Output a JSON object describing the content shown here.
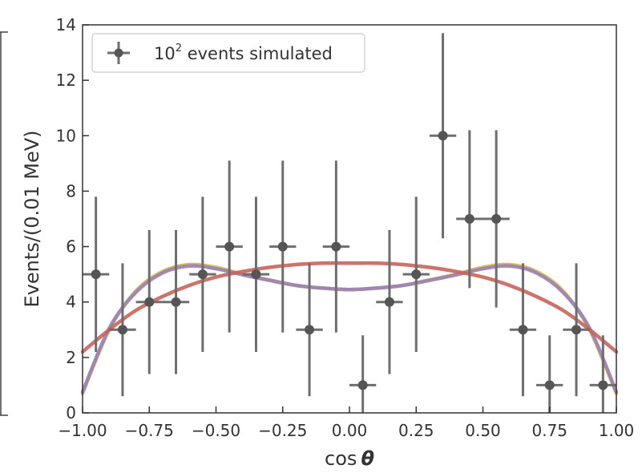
{
  "chart_data": {
    "type": "scatter",
    "xlabel": "cos",
    "xlabel_symbol": "θ",
    "ylabel": "Events/(0.01 MeV)",
    "xlim": [
      -1.0,
      1.0
    ],
    "ylim": [
      0,
      14
    ],
    "xticks": [
      -1.0,
      -0.75,
      -0.5,
      -0.25,
      0.0,
      0.25,
      0.5,
      0.75,
      1.0
    ],
    "xtick_labels": [
      "−1.00",
      "−0.75",
      "−0.50",
      "−0.25",
      "0.00",
      "0.25",
      "0.50",
      "0.75",
      "1.00"
    ],
    "yticks": [
      0,
      2,
      4,
      6,
      8,
      10,
      12,
      14
    ],
    "ytick_labels": [
      "0",
      "2",
      "4",
      "6",
      "8",
      "10",
      "12",
      "14"
    ],
    "grid": false,
    "legend": {
      "position": "top-left",
      "label_base": "10",
      "label_sup": "2",
      "label_rest": " events simulated"
    },
    "series": [
      {
        "name": "10^2 events simulated",
        "kind": "errorbar",
        "color": "#6e6e6e",
        "x": [
          -0.95,
          -0.85,
          -0.75,
          -0.65,
          -0.55,
          -0.45,
          -0.35,
          -0.25,
          -0.15,
          -0.05,
          0.05,
          0.15,
          0.25,
          0.35,
          0.45,
          0.55,
          0.65,
          0.75,
          0.85,
          0.95
        ],
        "y": [
          5,
          3,
          4,
          4,
          5,
          6,
          5,
          6,
          3,
          6,
          1,
          4,
          5,
          10,
          7,
          7,
          3,
          1,
          3,
          1
        ],
        "y_low": [
          2.2,
          0.6,
          1.4,
          1.4,
          2.2,
          2.9,
          2.2,
          2.9,
          0.6,
          2.9,
          0.0,
          1.4,
          2.2,
          6.3,
          4.5,
          3.8,
          0.6,
          0.0,
          0.6,
          0.0
        ],
        "y_high": [
          7.8,
          5.4,
          6.6,
          6.6,
          7.8,
          9.1,
          7.8,
          9.1,
          5.4,
          9.1,
          2.8,
          6.6,
          7.8,
          13.7,
          10.2,
          10.2,
          5.4,
          2.8,
          5.4,
          2.8
        ],
        "x_halfwidth": 0.05
      },
      {
        "kind": "curve",
        "color": "#d6b94a",
        "x": [
          -1.0,
          -0.9,
          -0.8,
          -0.7,
          -0.6,
          -0.5,
          -0.4,
          -0.3,
          -0.2,
          -0.1,
          0.0,
          0.1,
          0.2,
          0.3,
          0.4,
          0.5,
          0.6,
          0.7,
          0.8,
          0.9,
          1.0
        ],
        "y": [
          0.7,
          3.0,
          4.4,
          5.1,
          5.35,
          5.25,
          5.0,
          4.8,
          4.6,
          4.5,
          4.45,
          4.5,
          4.6,
          4.8,
          5.0,
          5.25,
          5.35,
          5.1,
          4.4,
          3.0,
          0.7
        ]
      },
      {
        "kind": "curve",
        "color": "#9a7fb8",
        "x": [
          -1.0,
          -0.9,
          -0.8,
          -0.7,
          -0.6,
          -0.5,
          -0.4,
          -0.3,
          -0.2,
          -0.1,
          0.0,
          0.1,
          0.2,
          0.3,
          0.4,
          0.5,
          0.6,
          0.7,
          0.8,
          0.9,
          1.0
        ],
        "y": [
          0.75,
          3.05,
          4.35,
          5.05,
          5.3,
          5.2,
          4.98,
          4.78,
          4.6,
          4.5,
          4.45,
          4.5,
          4.6,
          4.78,
          4.98,
          5.2,
          5.3,
          5.05,
          4.35,
          3.05,
          0.75
        ]
      },
      {
        "kind": "curve",
        "color": "#c8645a",
        "x": [
          -1.0,
          -0.9,
          -0.8,
          -0.7,
          -0.6,
          -0.5,
          -0.4,
          -0.3,
          -0.2,
          -0.1,
          0.0,
          0.1,
          0.2,
          0.3,
          0.4,
          0.5,
          0.6,
          0.7,
          0.8,
          0.9,
          1.0
        ],
        "y": [
          2.2,
          3.0,
          3.7,
          4.2,
          4.6,
          4.9,
          5.1,
          5.25,
          5.35,
          5.4,
          5.4,
          5.4,
          5.35,
          5.25,
          5.1,
          4.9,
          4.6,
          4.2,
          3.7,
          3.0,
          2.2
        ]
      }
    ]
  }
}
